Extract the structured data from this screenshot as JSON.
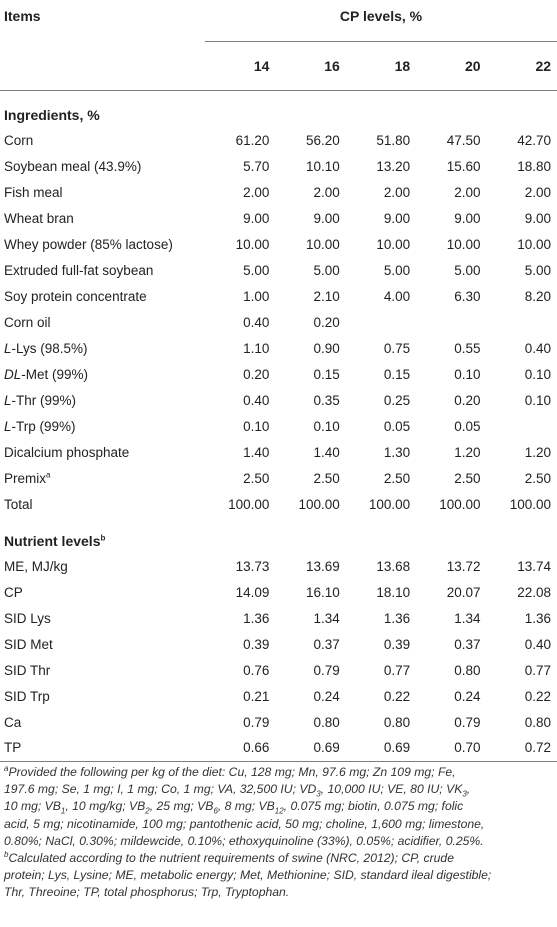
{
  "header": {
    "items_label": "Items",
    "group_label": "CP levels, %",
    "levels": [
      "14",
      "16",
      "18",
      "20",
      "22"
    ]
  },
  "sections": [
    {
      "title": "Ingredients, %",
      "rows": [
        {
          "label": "Corn",
          "values": [
            "61.20",
            "56.20",
            "51.80",
            "47.50",
            "42.70"
          ]
        },
        {
          "label": "Soybean meal (43.9%)",
          "values": [
            "5.70",
            "10.10",
            "13.20",
            "15.60",
            "18.80"
          ]
        },
        {
          "label": "Fish meal",
          "values": [
            "2.00",
            "2.00",
            "2.00",
            "2.00",
            "2.00"
          ]
        },
        {
          "label": "Wheat bran",
          "values": [
            "9.00",
            "9.00",
            "9.00",
            "9.00",
            "9.00"
          ]
        },
        {
          "label": "Whey powder (85% lactose)",
          "values": [
            "10.00",
            "10.00",
            "10.00",
            "10.00",
            "10.00"
          ]
        },
        {
          "label": "Extruded full-fat soybean",
          "values": [
            "5.00",
            "5.00",
            "5.00",
            "5.00",
            "5.00"
          ]
        },
        {
          "label": "Soy protein concentrate",
          "values": [
            "1.00",
            "2.10",
            "4.00",
            "6.30",
            "8.20"
          ]
        },
        {
          "label": "Corn oil",
          "values": [
            "0.40",
            "0.20",
            "",
            "",
            ""
          ]
        },
        {
          "label_prefix": "L",
          "label_rest": "-Lys (98.5%)",
          "values": [
            "1.10",
            "0.90",
            "0.75",
            "0.55",
            "0.40"
          ]
        },
        {
          "label_prefix": "DL",
          "label_rest": "-Met (99%)",
          "values": [
            "0.20",
            "0.15",
            "0.15",
            "0.10",
            "0.10"
          ]
        },
        {
          "label_prefix": "L",
          "label_rest": "-Thr (99%)",
          "values": [
            "0.40",
            "0.35",
            "0.25",
            "0.20",
            "0.10"
          ]
        },
        {
          "label_prefix": "L",
          "label_rest": "-Trp (99%)",
          "values": [
            "0.10",
            "0.10",
            "0.05",
            "0.05",
            ""
          ]
        },
        {
          "label": "Dicalcium phosphate",
          "values": [
            "1.40",
            "1.40",
            "1.30",
            "1.20",
            "1.20"
          ]
        },
        {
          "label": "Premix",
          "sup": "a",
          "values": [
            "2.50",
            "2.50",
            "2.50",
            "2.50",
            "2.50"
          ]
        },
        {
          "label": "Total",
          "values": [
            "100.00",
            "100.00",
            "100.00",
            "100.00",
            "100.00"
          ]
        }
      ]
    },
    {
      "title": "Nutrient levels",
      "title_sup": "b",
      "rows": [
        {
          "label": "ME, MJ/kg",
          "values": [
            "13.73",
            "13.69",
            "13.68",
            "13.72",
            "13.74"
          ]
        },
        {
          "label": "CP",
          "values": [
            "14.09",
            "16.10",
            "18.10",
            "20.07",
            "22.08"
          ]
        },
        {
          "label": "SID Lys",
          "values": [
            "1.36",
            "1.34",
            "1.36",
            "1.34",
            "1.36"
          ]
        },
        {
          "label": "SID Met",
          "values": [
            "0.39",
            "0.37",
            "0.39",
            "0.37",
            "0.40"
          ]
        },
        {
          "label": "SID Thr",
          "values": [
            "0.76",
            "0.79",
            "0.77",
            "0.80",
            "0.77"
          ]
        },
        {
          "label": "SID Trp",
          "values": [
            "0.21",
            "0.24",
            "0.22",
            "0.24",
            "0.22"
          ]
        },
        {
          "label": "Ca",
          "values": [
            "0.79",
            "0.80",
            "0.80",
            "0.79",
            "0.80"
          ]
        },
        {
          "label": "TP",
          "values": [
            "0.66",
            "0.69",
            "0.69",
            "0.70",
            "0.72"
          ]
        }
      ]
    }
  ],
  "footnotes": {
    "a": {
      "marker": "a",
      "lines": [
        [
          "Provided the following per kg of the diet: Cu, 128 mg; Mn, 97.6 mg; Zn 109 mg; Fe,"
        ],
        [
          "197.6 mg; Se, 1 mg; I, 1 mg; Co, 1 mg; VA, 32,500 IU; VD",
          {
            "sub": "3"
          },
          ", 10,000 IU; VE, 80 IU; VK",
          {
            "sub": "3"
          },
          ","
        ],
        [
          "10 mg; VB",
          {
            "sub": "1"
          },
          ", 10 mg/kg; VB",
          {
            "sub": "2"
          },
          ", 25 mg; VB",
          {
            "sub": "6"
          },
          ", 8 mg; VB",
          {
            "sub": "12"
          },
          ", 0.075 mg; biotin, 0.075 mg; folic"
        ],
        [
          "acid, 5 mg; nicotinamide, 100 mg; pantothenic acid, 50 mg; choline, 1,600 mg; limestone,"
        ],
        [
          "0.80%; NaCl, 0.30%; mildewcide, 0.10%; ethoxyquinoline (33%), 0.05%; acidifier, 0.25%."
        ]
      ]
    },
    "b": {
      "marker": "b",
      "lines": [
        [
          "Calculated according to the nutrient requirements of swine (NRC, 2012); CP, crude"
        ],
        [
          "protein; Lys, Lysine; ME, metabolic energy; Met, Methionine; SID, standard ileal digestible;"
        ],
        [
          "Thr, Threoine; TP, total phosphorus; Trp, Tryptophan."
        ]
      ]
    }
  }
}
